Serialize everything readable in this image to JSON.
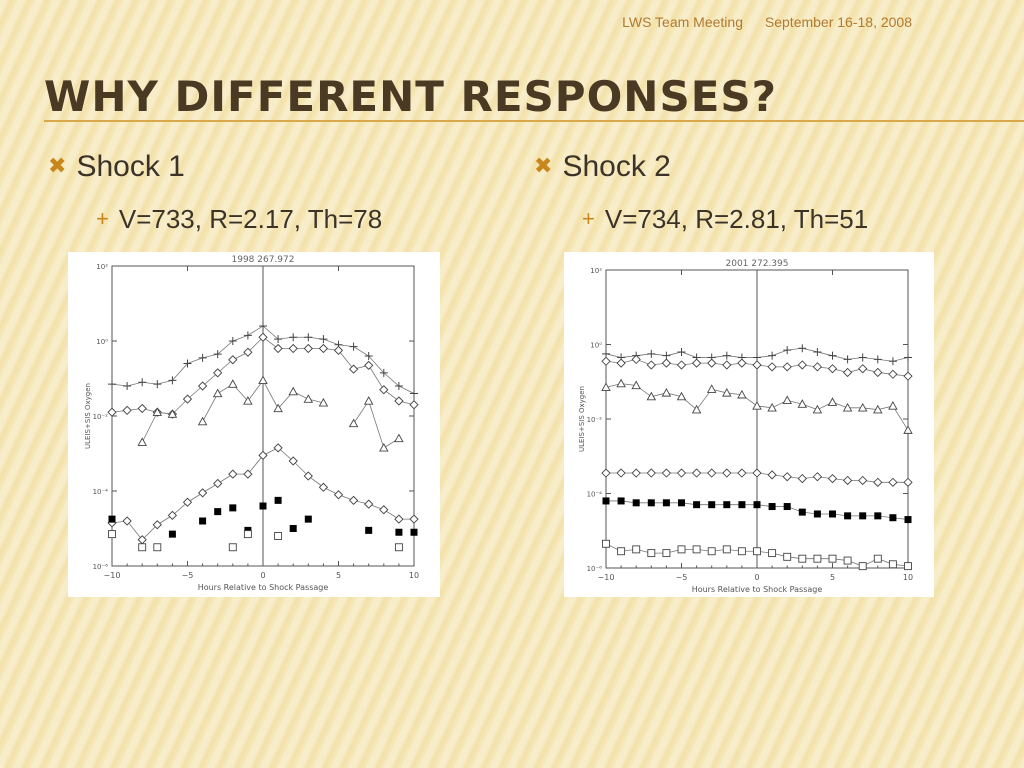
{
  "header": {
    "meeting": "LWS Team Meeting",
    "dates": "September 16-18, 2008"
  },
  "title": "Why Different Responses?",
  "shocks": [
    {
      "label": "Shock 1",
      "params": "V=733, R=2.17, Th=78"
    },
    {
      "label": "Shock 2",
      "params": "V=734, R=2.81, Th=51"
    }
  ],
  "colors": {
    "accent": "#c8871c",
    "title": "#4a3a24",
    "rule": "#d9a84a"
  },
  "chart_data": [
    {
      "type": "scatter",
      "title": "1998   267.972",
      "xlabel": "Hours Relative to Shock Passage",
      "ylabel": "ULEIS+SIS Oxygen",
      "xlim": [
        -10,
        10
      ],
      "ylim_log10": [
        -6,
        2
      ],
      "xticks": [
        -10,
        -5,
        0,
        5,
        10
      ],
      "xtick_labels": [
        "−10",
        "−5",
        "0",
        "5",
        "10"
      ],
      "yticks_log10": [
        2,
        0,
        -2,
        -4,
        -6
      ],
      "ytick_labels": [
        "10²",
        "10⁰",
        "10⁻²",
        "10⁻⁴",
        "10⁻⁶"
      ],
      "shock_marker_x": 0,
      "series": [
        {
          "marker": "plus",
          "line": true,
          "x": [
            -10,
            -9,
            -8,
            -7,
            -6,
            -5,
            -4,
            -3,
            -2,
            -1,
            0,
            1,
            2,
            3,
            4,
            5,
            6,
            7,
            8,
            9,
            10
          ],
          "y": [
            -1.15,
            -1.2,
            -1.1,
            -1.15,
            -1.05,
            -0.6,
            -0.45,
            -0.35,
            0,
            0.15,
            0.4,
            0.05,
            0.1,
            0.1,
            0.05,
            -0.1,
            -0.15,
            -0.4,
            -0.85,
            -1.2,
            -1.4
          ]
        },
        {
          "marker": "diamond",
          "line": true,
          "x": [
            -10,
            -9,
            -8,
            -7,
            -6,
            -5,
            -4,
            -3,
            -2,
            -1,
            0,
            1,
            2,
            3,
            4,
            5,
            6,
            7,
            8,
            9,
            10
          ],
          "y": [
            -1.9,
            -1.85,
            -1.8,
            -1.9,
            -1.95,
            -1.55,
            -1.2,
            -0.85,
            -0.5,
            -0.3,
            0.1,
            -0.2,
            -0.2,
            -0.2,
            -0.2,
            -0.25,
            -0.75,
            -0.65,
            -1.3,
            -1.6,
            -1.7
          ]
        },
        {
          "marker": "triangle",
          "line": true,
          "x": [
            -10,
            -9,
            -8,
            -7,
            -6,
            -5,
            -4,
            -3,
            -2,
            -1,
            0,
            1,
            2,
            3,
            4,
            5,
            6,
            7,
            8,
            9,
            10
          ],
          "y": [
            null,
            null,
            -2.7,
            -1.9,
            -1.95,
            null,
            -2.15,
            -1.4,
            -1.15,
            -1.6,
            -1.05,
            -1.8,
            -1.35,
            -1.55,
            -1.65,
            null,
            -2.2,
            -1.6,
            -2.85,
            -2.6,
            null
          ]
        },
        {
          "marker": "diamond",
          "line": true,
          "x": [
            -10,
            -9,
            -8,
            -7,
            -6,
            -5,
            -4,
            -3,
            -2,
            -1,
            0,
            1,
            2,
            3,
            4,
            5,
            6,
            7,
            8,
            9,
            10
          ],
          "y": [
            -4.85,
            -4.8,
            -5.3,
            -4.9,
            -4.65,
            -4.3,
            -4.05,
            -3.8,
            -3.55,
            -3.55,
            -3.05,
            -2.85,
            -3.2,
            -3.6,
            -3.9,
            -4.1,
            -4.25,
            -4.35,
            -4.5,
            -4.75,
            -4.75
          ]
        },
        {
          "marker": "square-filled",
          "line": false,
          "x": [
            -10,
            -6,
            -4,
            -3,
            -2,
            -1,
            0,
            1,
            2,
            3,
            7,
            9,
            10
          ],
          "y": [
            -4.75,
            -5.15,
            -4.8,
            -4.55,
            -4.45,
            -5.05,
            -4.4,
            -4.25,
            -5.0,
            -4.75,
            -5.05,
            -5.1,
            -5.1
          ]
        },
        {
          "marker": "square-open",
          "line": false,
          "x": [
            -10,
            -8,
            -7,
            -2,
            -1,
            1,
            9
          ],
          "y": [
            -5.15,
            -5.5,
            -5.5,
            -5.5,
            -5.15,
            -5.2,
            -5.5
          ]
        }
      ]
    },
    {
      "type": "scatter",
      "title": "2001   272.395",
      "xlabel": "Hours Relative to Shock Passage",
      "ylabel": "ULEIS+SIS Oxygen",
      "xlim": [
        -10,
        10
      ],
      "ylim_log10": [
        -6,
        2
      ],
      "xticks": [
        -10,
        -5,
        0,
        5,
        10
      ],
      "xtick_labels": [
        "−10",
        "−5",
        "0",
        "5",
        "10"
      ],
      "yticks_log10": [
        2,
        0,
        -2,
        -4,
        -6
      ],
      "ytick_labels": [
        "10²",
        "10⁰",
        "10⁻²",
        "10⁻⁴",
        "10⁻⁶"
      ],
      "shock_marker_x": 0,
      "series": [
        {
          "marker": "plus",
          "line": true,
          "x": [
            -10,
            -9,
            -8,
            -7,
            -6,
            -5,
            -4,
            -3,
            -2,
            -1,
            0,
            1,
            2,
            3,
            4,
            5,
            6,
            7,
            8,
            9,
            10
          ],
          "y": [
            -0.25,
            -0.35,
            -0.3,
            -0.25,
            -0.3,
            -0.2,
            -0.35,
            -0.35,
            -0.3,
            -0.35,
            -0.35,
            -0.3,
            -0.15,
            -0.1,
            -0.2,
            -0.3,
            -0.4,
            -0.35,
            -0.4,
            -0.45,
            -0.35
          ]
        },
        {
          "marker": "diamond",
          "line": true,
          "x": [
            -10,
            -9,
            -8,
            -7,
            -6,
            -5,
            -4,
            -3,
            -2,
            -1,
            0,
            1,
            2,
            3,
            4,
            5,
            6,
            7,
            8,
            9,
            10
          ],
          "y": [
            -0.45,
            -0.5,
            -0.4,
            -0.55,
            -0.5,
            -0.55,
            -0.5,
            -0.5,
            -0.55,
            -0.5,
            -0.55,
            -0.6,
            -0.6,
            -0.55,
            -0.6,
            -0.65,
            -0.75,
            -0.65,
            -0.75,
            -0.8,
            -0.85
          ]
        },
        {
          "marker": "triangle",
          "line": true,
          "x": [
            -10,
            -9,
            -8,
            -7,
            -6,
            -5,
            -4,
            -3,
            -2,
            -1,
            0,
            1,
            2,
            3,
            4,
            5,
            6,
            7,
            8,
            9,
            10
          ],
          "y": [
            -1.15,
            -1.05,
            -1.1,
            -1.4,
            -1.3,
            -1.4,
            -1.75,
            -1.2,
            -1.3,
            -1.35,
            -1.65,
            -1.7,
            -1.5,
            -1.6,
            -1.75,
            -1.55,
            -1.7,
            -1.7,
            -1.75,
            -1.65,
            -2.3
          ]
        },
        {
          "marker": "diamond",
          "line": true,
          "x": [
            -10,
            -9,
            -8,
            -7,
            -6,
            -5,
            -4,
            -3,
            -2,
            -1,
            0,
            1,
            2,
            3,
            4,
            5,
            6,
            7,
            8,
            9,
            10
          ],
          "y": [
            -3.45,
            -3.45,
            -3.45,
            -3.45,
            -3.45,
            -3.45,
            -3.45,
            -3.45,
            -3.45,
            -3.45,
            -3.45,
            -3.5,
            -3.55,
            -3.6,
            -3.55,
            -3.6,
            -3.65,
            -3.65,
            -3.7,
            -3.7,
            -3.7
          ]
        },
        {
          "marker": "square-filled",
          "line": true,
          "x": [
            -10,
            -9,
            -8,
            -7,
            -6,
            -5,
            -4,
            -3,
            -2,
            -1,
            0,
            1,
            2,
            3,
            4,
            5,
            6,
            7,
            8,
            9,
            10
          ],
          "y": [
            -4.2,
            -4.2,
            -4.25,
            -4.25,
            -4.25,
            -4.25,
            -4.3,
            -4.3,
            -4.3,
            -4.3,
            -4.3,
            -4.35,
            -4.35,
            -4.5,
            -4.55,
            -4.55,
            -4.6,
            -4.6,
            -4.6,
            -4.65,
            -4.7
          ]
        },
        {
          "marker": "square-open",
          "line": true,
          "x": [
            -10,
            -9,
            -8,
            -7,
            -6,
            -5,
            -4,
            -3,
            -2,
            -1,
            0,
            1,
            2,
            3,
            4,
            5,
            6,
            7,
            8,
            9,
            10
          ],
          "y": [
            -5.35,
            -5.55,
            -5.5,
            -5.6,
            -5.6,
            -5.5,
            -5.5,
            -5.55,
            -5.5,
            -5.55,
            -5.55,
            -5.6,
            -5.7,
            -5.75,
            -5.75,
            -5.75,
            -5.8,
            -5.95,
            -5.75,
            -5.9,
            -5.95
          ]
        }
      ]
    }
  ]
}
